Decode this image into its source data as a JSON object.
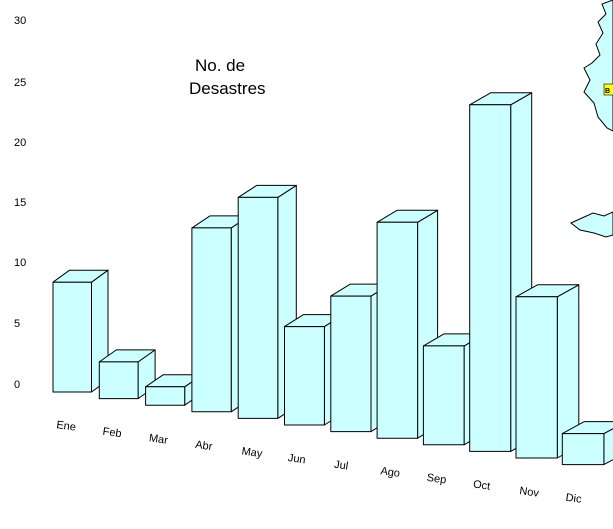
{
  "chart_data": {
    "type": "bar",
    "title_lines": [
      "No. de",
      "Desastres"
    ],
    "categories": [
      "Ene",
      "Feb",
      "Mar",
      "Abr",
      "May",
      "Jun",
      "Jul",
      "Ago",
      "Sep",
      "Oct",
      "Nov",
      "Dic"
    ],
    "values": [
      9,
      3,
      1.5,
      15,
      18,
      8,
      11,
      17.5,
      8,
      28,
      13,
      2.5
    ],
    "yticks": [
      "0",
      "5",
      "10",
      "15",
      "20",
      "25",
      "30"
    ],
    "ylim": [
      0,
      30
    ],
    "xlabel": "",
    "ylabel": "",
    "grid": false,
    "bar_color": "#ccffff",
    "edge_color": "#000000",
    "style": "3d-perspective"
  },
  "map_fragment": {
    "label": "B",
    "fill_color": "#ccffff",
    "label_color": "#ffff00"
  }
}
